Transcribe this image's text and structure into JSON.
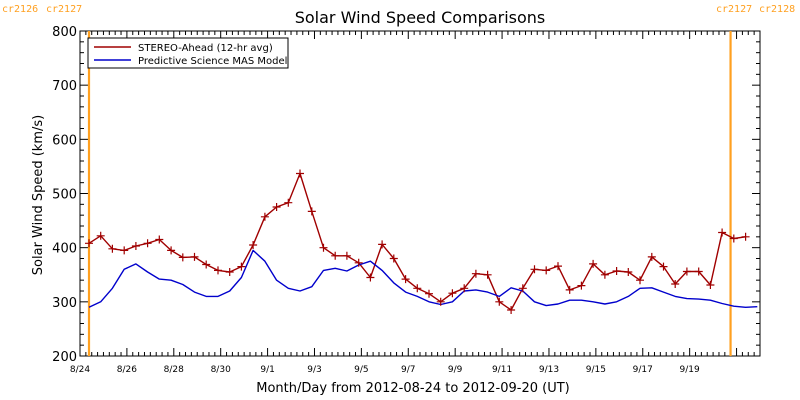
{
  "chart_data": {
    "type": "line",
    "title": "Solar Wind Speed Comparisons",
    "xlabel": "Month/Day from 2012-08-24 to 2012-09-20 (UT)",
    "ylabel": "Solar Wind Speed (km/s)",
    "xlim": [
      "2012-08-24",
      "2012-09-22"
    ],
    "ylim": [
      200,
      800
    ],
    "x_tick_labels": [
      "8/24",
      "8/26",
      "8/28",
      "8/30",
      "9/1",
      "9/3",
      "9/5",
      "9/7",
      "9/9",
      "9/11",
      "9/13",
      "9/15",
      "9/17",
      "9/19"
    ],
    "y_ticks": [
      200,
      300,
      400,
      500,
      600,
      700,
      800
    ],
    "carrington_markers": {
      "left_labels": [
        "cr2126",
        "cr2127"
      ],
      "right_labels": [
        "cr2127",
        "cr2128"
      ],
      "color": "#FFA020",
      "left_date": "2012-08-24",
      "right_date": "2012-09-21"
    },
    "legend_position": "top-left",
    "series": [
      {
        "name": "STEREO-Ahead (12-hr avg)",
        "color": "#A00000",
        "marker": "plus",
        "x": [
          "2012-08-24T00:00",
          "2012-08-24T12:00",
          "2012-08-25T00:00",
          "2012-08-25T12:00",
          "2012-08-26T00:00",
          "2012-08-26T12:00",
          "2012-08-27T00:00",
          "2012-08-27T12:00",
          "2012-08-28T00:00",
          "2012-08-28T12:00",
          "2012-08-29T00:00",
          "2012-08-29T12:00",
          "2012-08-30T00:00",
          "2012-08-30T12:00",
          "2012-08-31T00:00",
          "2012-08-31T12:00",
          "2012-09-01T00:00",
          "2012-09-01T12:00",
          "2012-09-02T00:00",
          "2012-09-02T12:00",
          "2012-09-03T00:00",
          "2012-09-03T12:00",
          "2012-09-04T00:00",
          "2012-09-04T12:00",
          "2012-09-05T00:00",
          "2012-09-05T12:00",
          "2012-09-06T00:00",
          "2012-09-06T12:00",
          "2012-09-07T00:00",
          "2012-09-07T12:00",
          "2012-09-08T00:00",
          "2012-09-08T12:00",
          "2012-09-09T00:00",
          "2012-09-09T12:00",
          "2012-09-10T00:00",
          "2012-09-10T12:00",
          "2012-09-11T00:00",
          "2012-09-11T12:00",
          "2012-09-12T00:00",
          "2012-09-12T12:00",
          "2012-09-13T00:00",
          "2012-09-13T12:00",
          "2012-09-14T00:00",
          "2012-09-14T12:00",
          "2012-09-15T00:00",
          "2012-09-15T12:00",
          "2012-09-16T00:00",
          "2012-09-16T12:00",
          "2012-09-17T00:00",
          "2012-09-17T12:00",
          "2012-09-18T00:00",
          "2012-09-18T12:00",
          "2012-09-19T00:00",
          "2012-09-19T12:00",
          "2012-09-20T00:00",
          "2012-09-20T12:00",
          "2012-09-21T00:00"
        ],
        "values": [
          408,
          422,
          398,
          395,
          403,
          408,
          415,
          395,
          382,
          383,
          369,
          358,
          355,
          365,
          405,
          457,
          475,
          483,
          537,
          467,
          400,
          385,
          385,
          372,
          345,
          406,
          380,
          342,
          325,
          315,
          300,
          316,
          325,
          352,
          350,
          300,
          285,
          325,
          360,
          358,
          366,
          322,
          330,
          370,
          350,
          357,
          355,
          340,
          383,
          365,
          333,
          356,
          356,
          331,
          428,
          417,
          420
        ]
      },
      {
        "name": "Predictive Science MAS Model",
        "color": "#0000CC",
        "x": [
          "2012-08-24T00:00",
          "2012-08-24T12:00",
          "2012-08-25T00:00",
          "2012-08-25T12:00",
          "2012-08-26T00:00",
          "2012-08-26T12:00",
          "2012-08-27T00:00",
          "2012-08-27T12:00",
          "2012-08-28T00:00",
          "2012-08-28T12:00",
          "2012-08-29T00:00",
          "2012-08-29T12:00",
          "2012-08-30T00:00",
          "2012-08-30T12:00",
          "2012-08-31T00:00",
          "2012-08-31T12:00",
          "2012-09-01T00:00",
          "2012-09-01T12:00",
          "2012-09-02T00:00",
          "2012-09-02T12:00",
          "2012-09-03T00:00",
          "2012-09-03T12:00",
          "2012-09-04T00:00",
          "2012-09-04T12:00",
          "2012-09-05T00:00",
          "2012-09-05T12:00",
          "2012-09-06T00:00",
          "2012-09-06T12:00",
          "2012-09-07T00:00",
          "2012-09-07T12:00",
          "2012-09-08T00:00",
          "2012-09-08T12:00",
          "2012-09-09T00:00",
          "2012-09-09T12:00",
          "2012-09-10T00:00",
          "2012-09-10T12:00",
          "2012-09-11T00:00",
          "2012-09-11T12:00",
          "2012-09-12T00:00",
          "2012-09-12T12:00",
          "2012-09-13T00:00",
          "2012-09-13T12:00",
          "2012-09-14T00:00",
          "2012-09-14T12:00",
          "2012-09-15T00:00",
          "2012-09-15T12:00",
          "2012-09-16T00:00",
          "2012-09-16T12:00",
          "2012-09-17T00:00",
          "2012-09-17T12:00",
          "2012-09-18T00:00",
          "2012-09-18T12:00",
          "2012-09-19T00:00",
          "2012-09-19T12:00",
          "2012-09-20T00:00",
          "2012-09-20T12:00",
          "2012-09-21T00:00",
          "2012-09-21T12:00"
        ],
        "values": [
          290,
          300,
          325,
          360,
          370,
          355,
          342,
          340,
          332,
          318,
          310,
          310,
          320,
          345,
          395,
          375,
          340,
          325,
          320,
          328,
          358,
          362,
          357,
          368,
          375,
          358,
          335,
          318,
          310,
          300,
          295,
          300,
          320,
          322,
          318,
          310,
          326,
          320,
          300,
          293,
          296,
          303,
          303,
          300,
          296,
          300,
          310,
          325,
          326,
          318,
          310,
          306,
          305,
          303,
          297,
          292,
          290,
          291
        ]
      }
    ]
  }
}
